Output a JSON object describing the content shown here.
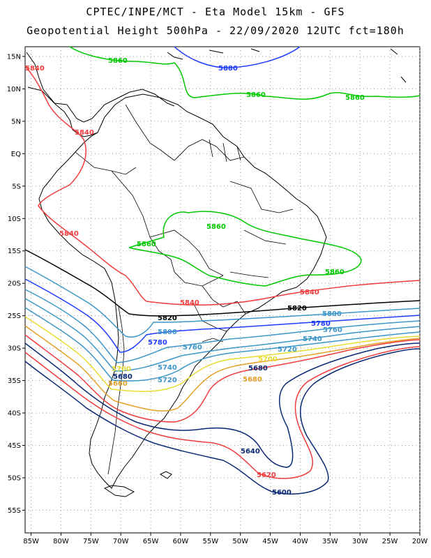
{
  "header": {
    "line1": "CPTEC/INPE/MCT -  Eta Model 15km - GFS",
    "line2": "Geopotential Height 500hPa - 22/09/2020 12UTC fct=180h"
  },
  "map": {
    "lat_ticks": [
      "15N",
      "10N",
      "5N",
      "EQ",
      "5S",
      "10S",
      "15S",
      "20S",
      "25S",
      "30S",
      "35S",
      "40S",
      "45S",
      "50S",
      "55S"
    ],
    "lat_values": [
      15,
      10,
      5,
      0,
      -5,
      -10,
      -15,
      -20,
      -25,
      -30,
      -35,
      -40,
      -45,
      -50,
      -55
    ],
    "lon_ticks": [
      "85W",
      "80W",
      "75W",
      "70W",
      "65W",
      "60W",
      "55W",
      "50W",
      "45W",
      "40W",
      "35W",
      "30W",
      "25W",
      "20W"
    ],
    "lon_values": [
      -85,
      -80,
      -75,
      -70,
      -65,
      -60,
      -55,
      -50,
      -45,
      -40,
      -35,
      -30,
      -25,
      -20
    ],
    "extent": {
      "lon_min": -86,
      "lon_max": -20,
      "lat_min": -58.5,
      "lat_max": 16.5
    }
  },
  "contours": [
    {
      "level": "5880",
      "color": "#1e3cff"
    },
    {
      "level": "5860",
      "color": "#00c800"
    },
    {
      "level": "5840",
      "color": "#f03c3c"
    },
    {
      "level": "5820",
      "color": "#000000"
    },
    {
      "level": "5800",
      "color": "#3c96c8"
    },
    {
      "level": "5780",
      "color": "#1e3cff"
    },
    {
      "level": "5760",
      "color": "#3c96c8"
    },
    {
      "level": "5740",
      "color": "#3c96c8"
    },
    {
      "level": "5720",
      "color": "#3c96c8"
    },
    {
      "level": "5700",
      "color": "#e6dc32"
    },
    {
      "level": "5680",
      "color": "#e6a028"
    },
    {
      "level": "5660",
      "color": "#f03c3c"
    },
    {
      "level": "5640",
      "color": "#0a2873"
    },
    {
      "level": "5620",
      "color": "#f03c3c"
    },
    {
      "level": "5600",
      "color": "#0a2873"
    }
  ]
}
